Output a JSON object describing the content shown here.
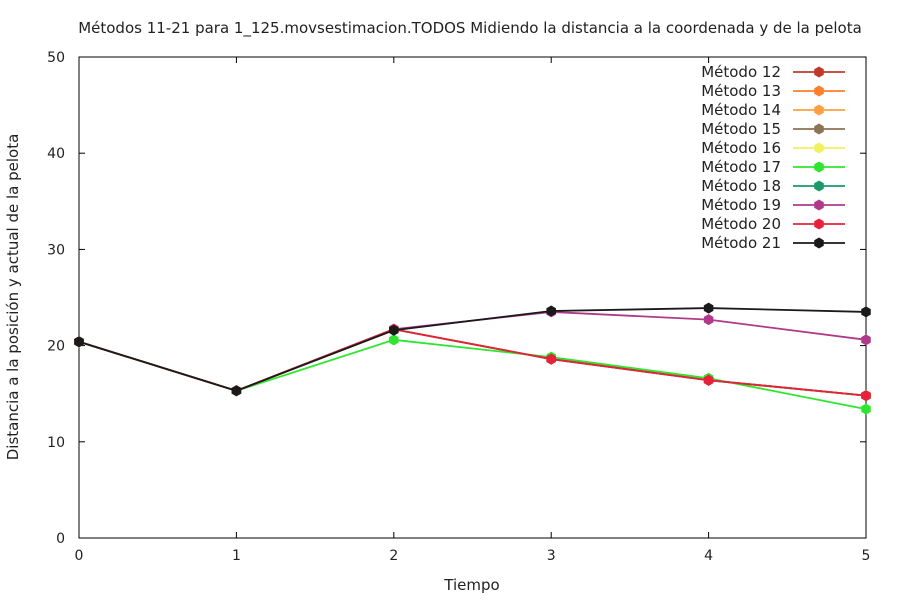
{
  "chart_data": {
    "type": "line",
    "title": "Métodos 11-21 para 1_125.movsestimacion.TODOS Midiendo la distancia a la coordenada y de la pelota",
    "xlabel": "Tiempo",
    "ylabel": "Distancia a la posición y actual de la pelota",
    "xlim": [
      0,
      5
    ],
    "ylim": [
      0,
      50
    ],
    "xticks": [
      "0",
      "1",
      "2",
      "3",
      "4",
      "5"
    ],
    "yticks": [
      "0",
      "10",
      "20",
      "30",
      "40",
      "50"
    ],
    "grid": false,
    "legend_position": "top-right",
    "x": [
      0,
      1,
      2,
      3,
      4,
      5
    ],
    "series": [
      {
        "name": "Método 12",
        "color": "#c0392b",
        "values": [
          20.4,
          15.3,
          21.7,
          18.6,
          16.4,
          14.8
        ]
      },
      {
        "name": "Método 13",
        "color": "#ff7f2a",
        "values": [
          20.4,
          15.3,
          21.7,
          18.6,
          16.4,
          14.8
        ]
      },
      {
        "name": "Método 14",
        "color": "#ffa040",
        "values": [
          20.4,
          15.3,
          21.7,
          18.6,
          16.4,
          14.8
        ]
      },
      {
        "name": "Método 15",
        "color": "#8b7355",
        "values": [
          20.4,
          15.3,
          21.7,
          18.6,
          16.4,
          14.8
        ]
      },
      {
        "name": "Método 16",
        "color": "#f0f060",
        "values": [
          20.4,
          15.3,
          21.7,
          18.6,
          16.4,
          14.8
        ]
      },
      {
        "name": "Método 17",
        "color": "#2ee62e",
        "values": [
          20.4,
          15.3,
          20.6,
          18.8,
          16.6,
          13.4
        ]
      },
      {
        "name": "Método 18",
        "color": "#1a9a6a",
        "values": [
          20.4,
          15.3,
          21.7,
          18.6,
          16.4,
          14.8
        ]
      },
      {
        "name": "Método 19",
        "color": "#b03a8a",
        "values": [
          20.4,
          15.3,
          21.7,
          23.5,
          22.7,
          20.6
        ]
      },
      {
        "name": "Método 20",
        "color": "#e8203a",
        "values": [
          20.4,
          15.3,
          21.7,
          18.6,
          16.4,
          14.8
        ]
      },
      {
        "name": "Método 21",
        "color": "#1a1a1a",
        "values": [
          20.4,
          15.3,
          21.6,
          23.6,
          23.9,
          23.5
        ]
      }
    ]
  }
}
